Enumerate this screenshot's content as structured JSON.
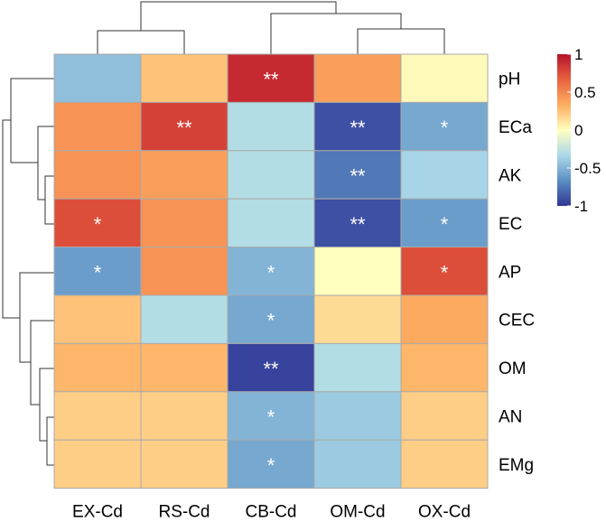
{
  "chart_data": {
    "type": "heatmap",
    "columns": [
      "EX-Cd",
      "RS-Cd",
      "CB-Cd",
      "OM-Cd",
      "OX-Cd"
    ],
    "rows": [
      "pH",
      "ECa",
      "AK",
      "EC",
      "AP",
      "CEC",
      "OM",
      "AN",
      "EMg"
    ],
    "values": [
      [
        -0.45,
        0.25,
        0.9,
        0.4,
        0.02
      ],
      [
        0.45,
        0.8,
        -0.3,
        -0.9,
        -0.55
      ],
      [
        0.45,
        0.4,
        -0.3,
        -0.75,
        -0.35
      ],
      [
        0.75,
        0.45,
        -0.3,
        -0.9,
        -0.6
      ],
      [
        -0.6,
        0.45,
        -0.5,
        0.0,
        0.75
      ],
      [
        0.25,
        -0.3,
        -0.55,
        0.15,
        0.35
      ],
      [
        0.3,
        0.3,
        -0.95,
        -0.3,
        0.3
      ],
      [
        0.2,
        0.2,
        -0.5,
        -0.4,
        0.2
      ],
      [
        0.2,
        0.2,
        -0.55,
        -0.4,
        0.2
      ]
    ],
    "significance": [
      [
        "",
        "",
        "**",
        "",
        ""
      ],
      [
        "",
        "**",
        "",
        "**",
        "*"
      ],
      [
        "",
        "",
        "",
        "**",
        ""
      ],
      [
        "*",
        "",
        "",
        "**",
        "*"
      ],
      [
        "*",
        "",
        "*",
        "",
        "*"
      ],
      [
        "",
        "",
        "*",
        "",
        ""
      ],
      [
        "",
        "",
        "**",
        "",
        ""
      ],
      [
        "",
        "",
        "*",
        "",
        ""
      ],
      [
        "",
        "",
        "*",
        "",
        ""
      ]
    ],
    "color_scale": {
      "min": -1,
      "max": 1,
      "stops": [
        "#313695",
        "#5b8ec2",
        "#abd9e9",
        "#ffffbf",
        "#fdae61",
        "#e9623f",
        "#b5122b"
      ]
    },
    "legend": {
      "ticks": [
        1,
        0.5,
        0,
        -0.5,
        -1
      ],
      "tick_labels": [
        "1",
        "0.5",
        "0",
        "-0.5",
        "-1"
      ],
      "placement": "top-right"
    },
    "column_dendrogram": [
      [
        "RS-Cd",
        "EX-Cd"
      ],
      [
        "OM-Cd",
        "OX-Cd"
      ],
      [
        "CB-Cd",
        "OM-Cd+OX-Cd"
      ],
      [
        "EX-Cd+RS-Cd",
        "CB-Cd+OM-Cd+OX-Cd"
      ]
    ],
    "row_dendrogram": "hierarchical clustering of rows",
    "cell_border_color": "#aaaaaa"
  }
}
